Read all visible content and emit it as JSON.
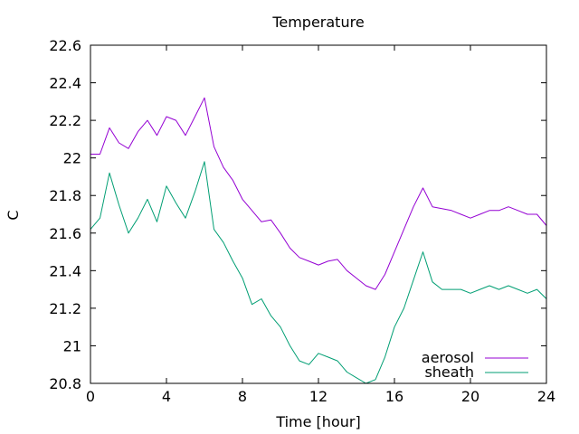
{
  "chart_data": {
    "type": "line",
    "title": "Temperature",
    "xlabel": "Time [hour]",
    "ylabel": "C",
    "xlim": [
      0,
      24
    ],
    "ylim": [
      20.8,
      22.6
    ],
    "x_ticks": [
      0,
      4,
      8,
      12,
      16,
      20,
      24
    ],
    "y_ticks": [
      20.8,
      21.0,
      21.2,
      21.4,
      21.6,
      21.8,
      22.0,
      22.2,
      22.4,
      22.6
    ],
    "x_tick_labels": [
      "0",
      "4",
      "8",
      "12",
      "16",
      "20",
      "24"
    ],
    "y_tick_labels": [
      "20.8",
      "21",
      "21.2",
      "21.4",
      "21.6",
      "21.8",
      "22",
      "22.2",
      "22.4",
      "22.6"
    ],
    "grid": false,
    "legend_position": "bottom-right",
    "x": [
      0,
      0.5,
      1,
      1.5,
      2,
      2.5,
      3,
      3.5,
      4,
      4.5,
      5,
      5.5,
      6,
      6.5,
      7,
      7.5,
      8,
      8.5,
      9,
      9.5,
      10,
      10.5,
      11,
      11.5,
      12,
      12.5,
      13,
      13.5,
      14,
      14.5,
      15,
      15.5,
      16,
      16.5,
      17,
      17.5,
      18,
      18.5,
      19,
      19.5,
      20,
      20.5,
      21,
      21.5,
      22,
      22.5,
      23,
      23.5,
      24
    ],
    "series": [
      {
        "name": "aerosol",
        "color": "#9400d3",
        "values": [
          22.02,
          22.02,
          22.16,
          22.08,
          22.05,
          22.14,
          22.2,
          22.12,
          22.22,
          22.2,
          22.12,
          22.22,
          22.32,
          22.06,
          21.95,
          21.88,
          21.78,
          21.72,
          21.66,
          21.67,
          21.6,
          21.52,
          21.47,
          21.45,
          21.43,
          21.45,
          21.46,
          21.4,
          21.36,
          21.32,
          21.3,
          21.38,
          21.5,
          21.62,
          21.74,
          21.84,
          21.74,
          21.73,
          21.72,
          21.7,
          21.68,
          21.7,
          21.72,
          21.72,
          21.74,
          21.72,
          21.7,
          21.7,
          21.64
        ]
      },
      {
        "name": "sheath",
        "color": "#009e73",
        "values": [
          21.62,
          21.68,
          21.92,
          21.75,
          21.6,
          21.68,
          21.78,
          21.66,
          21.85,
          21.76,
          21.68,
          21.82,
          21.98,
          21.62,
          21.55,
          21.45,
          21.36,
          21.22,
          21.25,
          21.16,
          21.1,
          21.0,
          20.92,
          20.9,
          20.96,
          20.94,
          20.92,
          20.86,
          20.83,
          20.8,
          20.82,
          20.94,
          21.1,
          21.2,
          21.35,
          21.5,
          21.34,
          21.3,
          21.3,
          21.3,
          21.28,
          21.3,
          21.32,
          21.3,
          21.32,
          21.3,
          21.28,
          21.3,
          21.25
        ]
      }
    ]
  }
}
